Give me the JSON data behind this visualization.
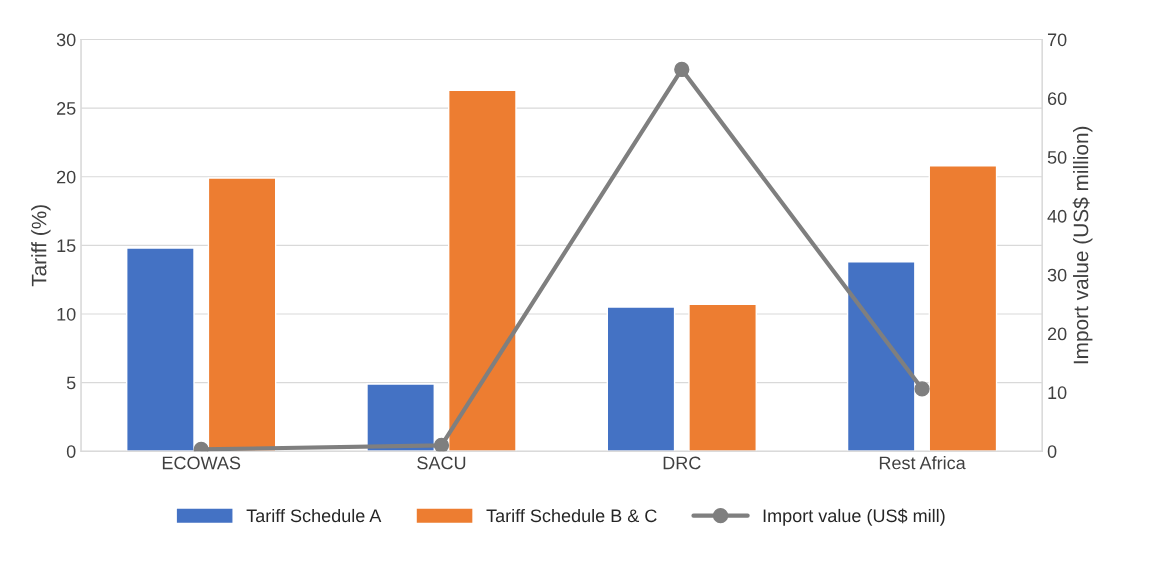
{
  "chart_data": {
    "type": "bar",
    "ylabel": "Tariff (%)",
    "y2label": "Import value (US$ million)",
    "categories": [
      "ECOWAS",
      "SACU",
      "DRC",
      "Rest Africa"
    ],
    "series": [
      {
        "name": "Tariff Schedule A",
        "color": "#4472c4",
        "values": [
          14.8,
          4.9,
          10.5,
          13.8
        ]
      },
      {
        "name": "Tariff Schedule B & C",
        "color": "#ed7d31",
        "values": [
          19.9,
          26.3,
          10.7,
          20.8
        ]
      },
      {
        "name": "Import value (US$ mill)",
        "type": "line",
        "axis": "y2",
        "color": "#7f7f7f",
        "values": [
          0.3,
          1.0,
          64.9,
          10.6
        ],
        "marker": "circle"
      }
    ],
    "ylim": [
      0,
      30
    ],
    "yticks": [
      0,
      5,
      10,
      15,
      20,
      25,
      30
    ],
    "y2lim": [
      0,
      70
    ],
    "y2ticks": [
      0,
      10,
      20,
      30,
      40,
      50,
      60,
      70
    ],
    "grid": "y",
    "legend": "bottom"
  }
}
